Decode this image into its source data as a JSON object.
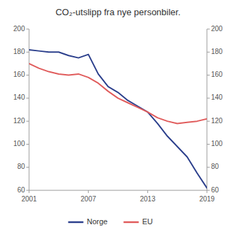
{
  "chart_data": {
    "type": "line",
    "title": "CO₂-utslipp fra nye personbiler.",
    "x": [
      2001,
      2002,
      2003,
      2004,
      2005,
      2006,
      2007,
      2008,
      2009,
      2010,
      2011,
      2012,
      2013,
      2014,
      2015,
      2016,
      2017,
      2018,
      2019
    ],
    "series": [
      {
        "name": "Norge",
        "color": "#2B3F8C",
        "values": [
          182,
          181,
          180,
          180,
          177,
          175,
          178,
          161,
          150,
          145,
          138,
          133,
          128,
          118,
          107,
          98,
          89,
          75,
          62
        ]
      },
      {
        "name": "EU",
        "color": "#E05B5B",
        "values": [
          170,
          166,
          163,
          161,
          160,
          161,
          158,
          153,
          146,
          140,
          136,
          132,
          128,
          123,
          120,
          118,
          119,
          120,
          122
        ]
      }
    ],
    "xlim": [
      2001,
      2019
    ],
    "xticks": [
      2001,
      2007,
      2013,
      2019
    ],
    "ylim": [
      60,
      200
    ],
    "yticks": [
      60,
      80,
      100,
      120,
      140,
      160,
      180,
      200
    ],
    "y2lim": [
      60,
      200
    ],
    "y2ticks": [
      60,
      80,
      100,
      120,
      140,
      160,
      180,
      200
    ],
    "grid": false,
    "legend": "bottom"
  }
}
